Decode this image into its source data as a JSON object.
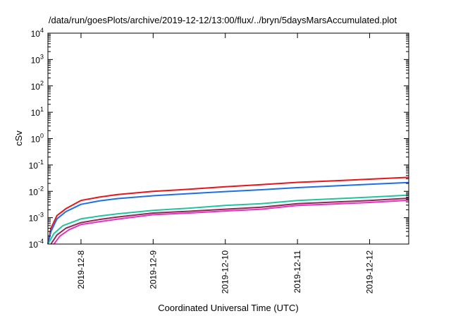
{
  "chart_data": {
    "type": "line",
    "title": "/data/run/goesPlots/archive/2019-12-12/13:00/flux/../bryn/5daysMarsAccumulated.plot",
    "xlabel": "Coordinated Universal Time (UTC)",
    "ylabel": "cSv",
    "y_scale": "log",
    "ylim": [
      0.0001,
      10000
    ],
    "xlim": [
      "2019-12-07 13:00",
      "2019-12-12 13:00"
    ],
    "grid": false,
    "y_ticks": [
      {
        "base": "10",
        "exp": "-4",
        "value": 0.0001
      },
      {
        "base": "10",
        "exp": "-3",
        "value": 0.001
      },
      {
        "base": "10",
        "exp": "-2",
        "value": 0.01
      },
      {
        "base": "10",
        "exp": "-1",
        "value": 0.1
      },
      {
        "base": "10",
        "exp": "0",
        "value": 1
      },
      {
        "base": "10",
        "exp": "1",
        "value": 10
      },
      {
        "base": "10",
        "exp": "2",
        "value": 100
      },
      {
        "base": "10",
        "exp": "3",
        "value": 1000
      },
      {
        "base": "10",
        "exp": "4",
        "value": 10000
      }
    ],
    "x_ticks": [
      {
        "label": "2019-12-8",
        "value": "2019-12-08 00:00"
      },
      {
        "label": "2019-12-9",
        "value": "2019-12-09 00:00"
      },
      {
        "label": "2019-12-10",
        "value": "2019-12-10 00:00"
      },
      {
        "label": "2019-12-11",
        "value": "2019-12-11 00:00"
      },
      {
        "label": "2019-12-12",
        "value": "2019-12-12 00:00"
      }
    ],
    "series": [
      {
        "color": "#e8151b",
        "points": [
          [
            "2019-12-07 13:00",
            0.0001
          ],
          [
            "2019-12-07 14:00",
            0.0004
          ],
          [
            "2019-12-07 16:00",
            0.0012
          ],
          [
            "2019-12-07 19:00",
            0.0022
          ],
          [
            "2019-12-08 00:00",
            0.0045
          ],
          [
            "2019-12-08 06:00",
            0.006
          ],
          [
            "2019-12-08 12:00",
            0.0075
          ],
          [
            "2019-12-09 00:00",
            0.01
          ],
          [
            "2019-12-09 12:00",
            0.012
          ],
          [
            "2019-12-10 00:00",
            0.015
          ],
          [
            "2019-12-10 12:00",
            0.018
          ],
          [
            "2019-12-11 00:00",
            0.022
          ],
          [
            "2019-12-11 12:00",
            0.025
          ],
          [
            "2019-12-12 00:00",
            0.029
          ],
          [
            "2019-12-12 13:00",
            0.034
          ]
        ]
      },
      {
        "color": "#1f6fe6",
        "points": [
          [
            "2019-12-07 13:00",
            0.0001
          ],
          [
            "2019-12-07 14:00",
            0.0003
          ],
          [
            "2019-12-07 16:00",
            0.0009
          ],
          [
            "2019-12-07 19:00",
            0.0017
          ],
          [
            "2019-12-08 00:00",
            0.0032
          ],
          [
            "2019-12-08 06:00",
            0.0043
          ],
          [
            "2019-12-08 12:00",
            0.0053
          ],
          [
            "2019-12-09 00:00",
            0.0068
          ],
          [
            "2019-12-09 12:00",
            0.0082
          ],
          [
            "2019-12-10 00:00",
            0.0098
          ],
          [
            "2019-12-10 12:00",
            0.0115
          ],
          [
            "2019-12-11 00:00",
            0.0138
          ],
          [
            "2019-12-11 12:00",
            0.016
          ],
          [
            "2019-12-12 00:00",
            0.0185
          ],
          [
            "2019-12-12 13:00",
            0.0215
          ]
        ]
      },
      {
        "color": "#21c4a0",
        "points": [
          [
            "2019-12-07 13:00",
            0.0001
          ],
          [
            "2019-12-07 15:00",
            0.00025
          ],
          [
            "2019-12-07 18:00",
            0.0005
          ],
          [
            "2019-12-08 00:00",
            0.0009
          ],
          [
            "2019-12-08 06:00",
            0.00115
          ],
          [
            "2019-12-08 12:00",
            0.0014
          ],
          [
            "2019-12-09 00:00",
            0.0019
          ],
          [
            "2019-12-09 12:00",
            0.0023
          ],
          [
            "2019-12-10 00:00",
            0.0029
          ],
          [
            "2019-12-10 12:00",
            0.0034
          ],
          [
            "2019-12-11 00:00",
            0.0045
          ],
          [
            "2019-12-11 12:00",
            0.0052
          ],
          [
            "2019-12-12 00:00",
            0.006
          ],
          [
            "2019-12-12 13:00",
            0.0072
          ]
        ]
      },
      {
        "color": "#8c2a55",
        "points": [
          [
            "2019-12-07 14:00",
            0.0001
          ],
          [
            "2019-12-07 16:00",
            0.00022
          ],
          [
            "2019-12-07 19:00",
            0.0004
          ],
          [
            "2019-12-08 00:00",
            0.00065
          ],
          [
            "2019-12-08 06:00",
            0.00085
          ],
          [
            "2019-12-08 12:00",
            0.00105
          ],
          [
            "2019-12-09 00:00",
            0.0015
          ],
          [
            "2019-12-09 12:00",
            0.00175
          ],
          [
            "2019-12-10 00:00",
            0.0021
          ],
          [
            "2019-12-10 12:00",
            0.0025
          ],
          [
            "2019-12-11 00:00",
            0.0034
          ],
          [
            "2019-12-11 12:00",
            0.0039
          ],
          [
            "2019-12-12 00:00",
            0.0045
          ],
          [
            "2019-12-12 13:00",
            0.0055
          ]
        ]
      },
      {
        "color": "#e632c0",
        "points": [
          [
            "2019-12-07 15:00",
            0.0001
          ],
          [
            "2019-12-07 17:00",
            0.0002
          ],
          [
            "2019-12-07 20:00",
            0.00035
          ],
          [
            "2019-12-08 00:00",
            0.00055
          ],
          [
            "2019-12-08 06:00",
            0.0007
          ],
          [
            "2019-12-08 12:00",
            0.00088
          ],
          [
            "2019-12-09 00:00",
            0.0013
          ],
          [
            "2019-12-09 12:00",
            0.0015
          ],
          [
            "2019-12-10 00:00",
            0.0018
          ],
          [
            "2019-12-10 12:00",
            0.0021
          ],
          [
            "2019-12-11 00:00",
            0.0029
          ],
          [
            "2019-12-11 12:00",
            0.0033
          ],
          [
            "2019-12-12 00:00",
            0.0038
          ],
          [
            "2019-12-12 13:00",
            0.0046
          ]
        ]
      }
    ]
  }
}
